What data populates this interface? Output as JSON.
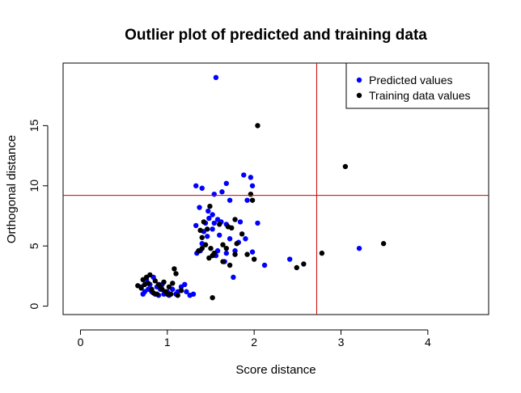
{
  "chart_data": {
    "type": "scatter",
    "title": "Outlier plot of predicted and training data",
    "xlabel": "Score distance",
    "ylabel": "Orthogonal distance",
    "xlim": [
      -0.2,
      4.7
    ],
    "ylim": [
      -0.7,
      20.2
    ],
    "xticks": [
      0,
      1,
      2,
      3,
      4
    ],
    "yticks": [
      0,
      5,
      10,
      15
    ],
    "legend_position": "top-right",
    "cutoff_lines": {
      "vertical_x": 2.72,
      "horizontal_y": 9.2,
      "color": "#cc0000"
    },
    "series": [
      {
        "name": "Predicted values",
        "color": "#0000ff",
        "points": [
          [
            1.56,
            19.0
          ],
          [
            3.21,
            4.8
          ],
          [
            2.41,
            3.9
          ],
          [
            2.12,
            3.4
          ],
          [
            1.88,
            10.9
          ],
          [
            1.96,
            10.7
          ],
          [
            1.98,
            10.0
          ],
          [
            1.68,
            10.2
          ],
          [
            1.33,
            10.0
          ],
          [
            1.4,
            9.8
          ],
          [
            1.54,
            9.3
          ],
          [
            1.63,
            9.5
          ],
          [
            1.72,
            8.8
          ],
          [
            1.92,
            8.8
          ],
          [
            1.37,
            8.2
          ],
          [
            1.47,
            7.9
          ],
          [
            1.52,
            7.6
          ],
          [
            1.48,
            7.3
          ],
          [
            1.58,
            7.2
          ],
          [
            1.62,
            7.0
          ],
          [
            1.54,
            6.9
          ],
          [
            1.44,
            6.9
          ],
          [
            1.68,
            6.8
          ],
          [
            1.84,
            7.0
          ],
          [
            2.04,
            6.9
          ],
          [
            1.33,
            6.7
          ],
          [
            1.42,
            6.2
          ],
          [
            1.52,
            6.4
          ],
          [
            1.6,
            5.9
          ],
          [
            1.72,
            5.6
          ],
          [
            1.82,
            5.3
          ],
          [
            1.9,
            5.6
          ],
          [
            1.46,
            5.8
          ],
          [
            1.4,
            5.2
          ],
          [
            1.38,
            4.6
          ],
          [
            1.34,
            4.4
          ],
          [
            1.58,
            4.6
          ],
          [
            1.68,
            4.4
          ],
          [
            1.78,
            4.6
          ],
          [
            1.98,
            4.5
          ],
          [
            1.56,
            4.2
          ],
          [
            1.66,
            3.7
          ],
          [
            1.76,
            2.4
          ],
          [
            1.3,
            1.0
          ],
          [
            1.22,
            1.2
          ],
          [
            1.26,
            0.9
          ],
          [
            1.16,
            1.6
          ],
          [
            1.2,
            1.8
          ],
          [
            1.06,
            1.4
          ],
          [
            1.0,
            1.2
          ],
          [
            0.96,
            1.0
          ],
          [
            0.92,
            1.4
          ],
          [
            0.88,
            1.6
          ],
          [
            0.86,
            1.0
          ],
          [
            0.82,
            1.2
          ],
          [
            0.8,
            1.8
          ],
          [
            0.78,
            1.4
          ],
          [
            0.76,
            2.2
          ],
          [
            0.72,
            1.0
          ],
          [
            0.7,
            1.6
          ],
          [
            0.84,
            2.4
          ],
          [
            0.94,
            1.8
          ],
          [
            1.1,
            1.0
          ],
          [
            0.9,
            0.9
          ],
          [
            0.74,
            1.2
          ],
          [
            1.02,
            0.9
          ],
          [
            1.12,
            1.2
          ]
        ]
      },
      {
        "name": "Training data values",
        "color": "#000000",
        "points": [
          [
            2.04,
            15.0
          ],
          [
            3.05,
            11.6
          ],
          [
            3.49,
            5.2
          ],
          [
            2.78,
            4.4
          ],
          [
            2.57,
            3.5
          ],
          [
            2.49,
            3.2
          ],
          [
            1.96,
            9.3
          ],
          [
            1.98,
            8.8
          ],
          [
            1.6,
            6.8
          ],
          [
            1.7,
            6.6
          ],
          [
            1.78,
            7.2
          ],
          [
            1.74,
            6.5
          ],
          [
            1.86,
            6.0
          ],
          [
            1.42,
            7.0
          ],
          [
            1.46,
            6.4
          ],
          [
            1.38,
            6.3
          ],
          [
            1.4,
            5.7
          ],
          [
            1.44,
            5.1
          ],
          [
            1.5,
            4.8
          ],
          [
            1.52,
            4.2
          ],
          [
            1.48,
            4.0
          ],
          [
            1.54,
            4.4
          ],
          [
            1.64,
            5.1
          ],
          [
            1.68,
            4.8
          ],
          [
            1.8,
            5.2
          ],
          [
            1.78,
            4.3
          ],
          [
            1.92,
            4.3
          ],
          [
            2.0,
            3.9
          ],
          [
            1.36,
            4.6
          ],
          [
            1.4,
            4.8
          ],
          [
            1.72,
            3.4
          ],
          [
            1.64,
            3.7
          ],
          [
            1.49,
            8.3
          ],
          [
            1.52,
            0.7
          ],
          [
            1.08,
            3.1
          ],
          [
            1.1,
            2.7
          ],
          [
            1.02,
            1.6
          ],
          [
            0.98,
            1.2
          ],
          [
            0.9,
            1.8
          ],
          [
            0.86,
            2.1
          ],
          [
            0.8,
            2.6
          ],
          [
            0.76,
            2.4
          ],
          [
            0.74,
            1.8
          ],
          [
            0.7,
            1.5
          ],
          [
            0.66,
            1.7
          ],
          [
            0.82,
            1.4
          ],
          [
            0.88,
            1.0
          ],
          [
            0.94,
            1.4
          ],
          [
            1.04,
            1.0
          ],
          [
            1.12,
            0.9
          ],
          [
            1.16,
            1.3
          ],
          [
            1.0,
            1.0
          ],
          [
            0.92,
            1.6
          ],
          [
            0.84,
            1.1
          ],
          [
            0.78,
            1.9
          ],
          [
            0.72,
            2.2
          ],
          [
            0.96,
            2.0
          ],
          [
            1.06,
            1.9
          ]
        ]
      }
    ]
  }
}
